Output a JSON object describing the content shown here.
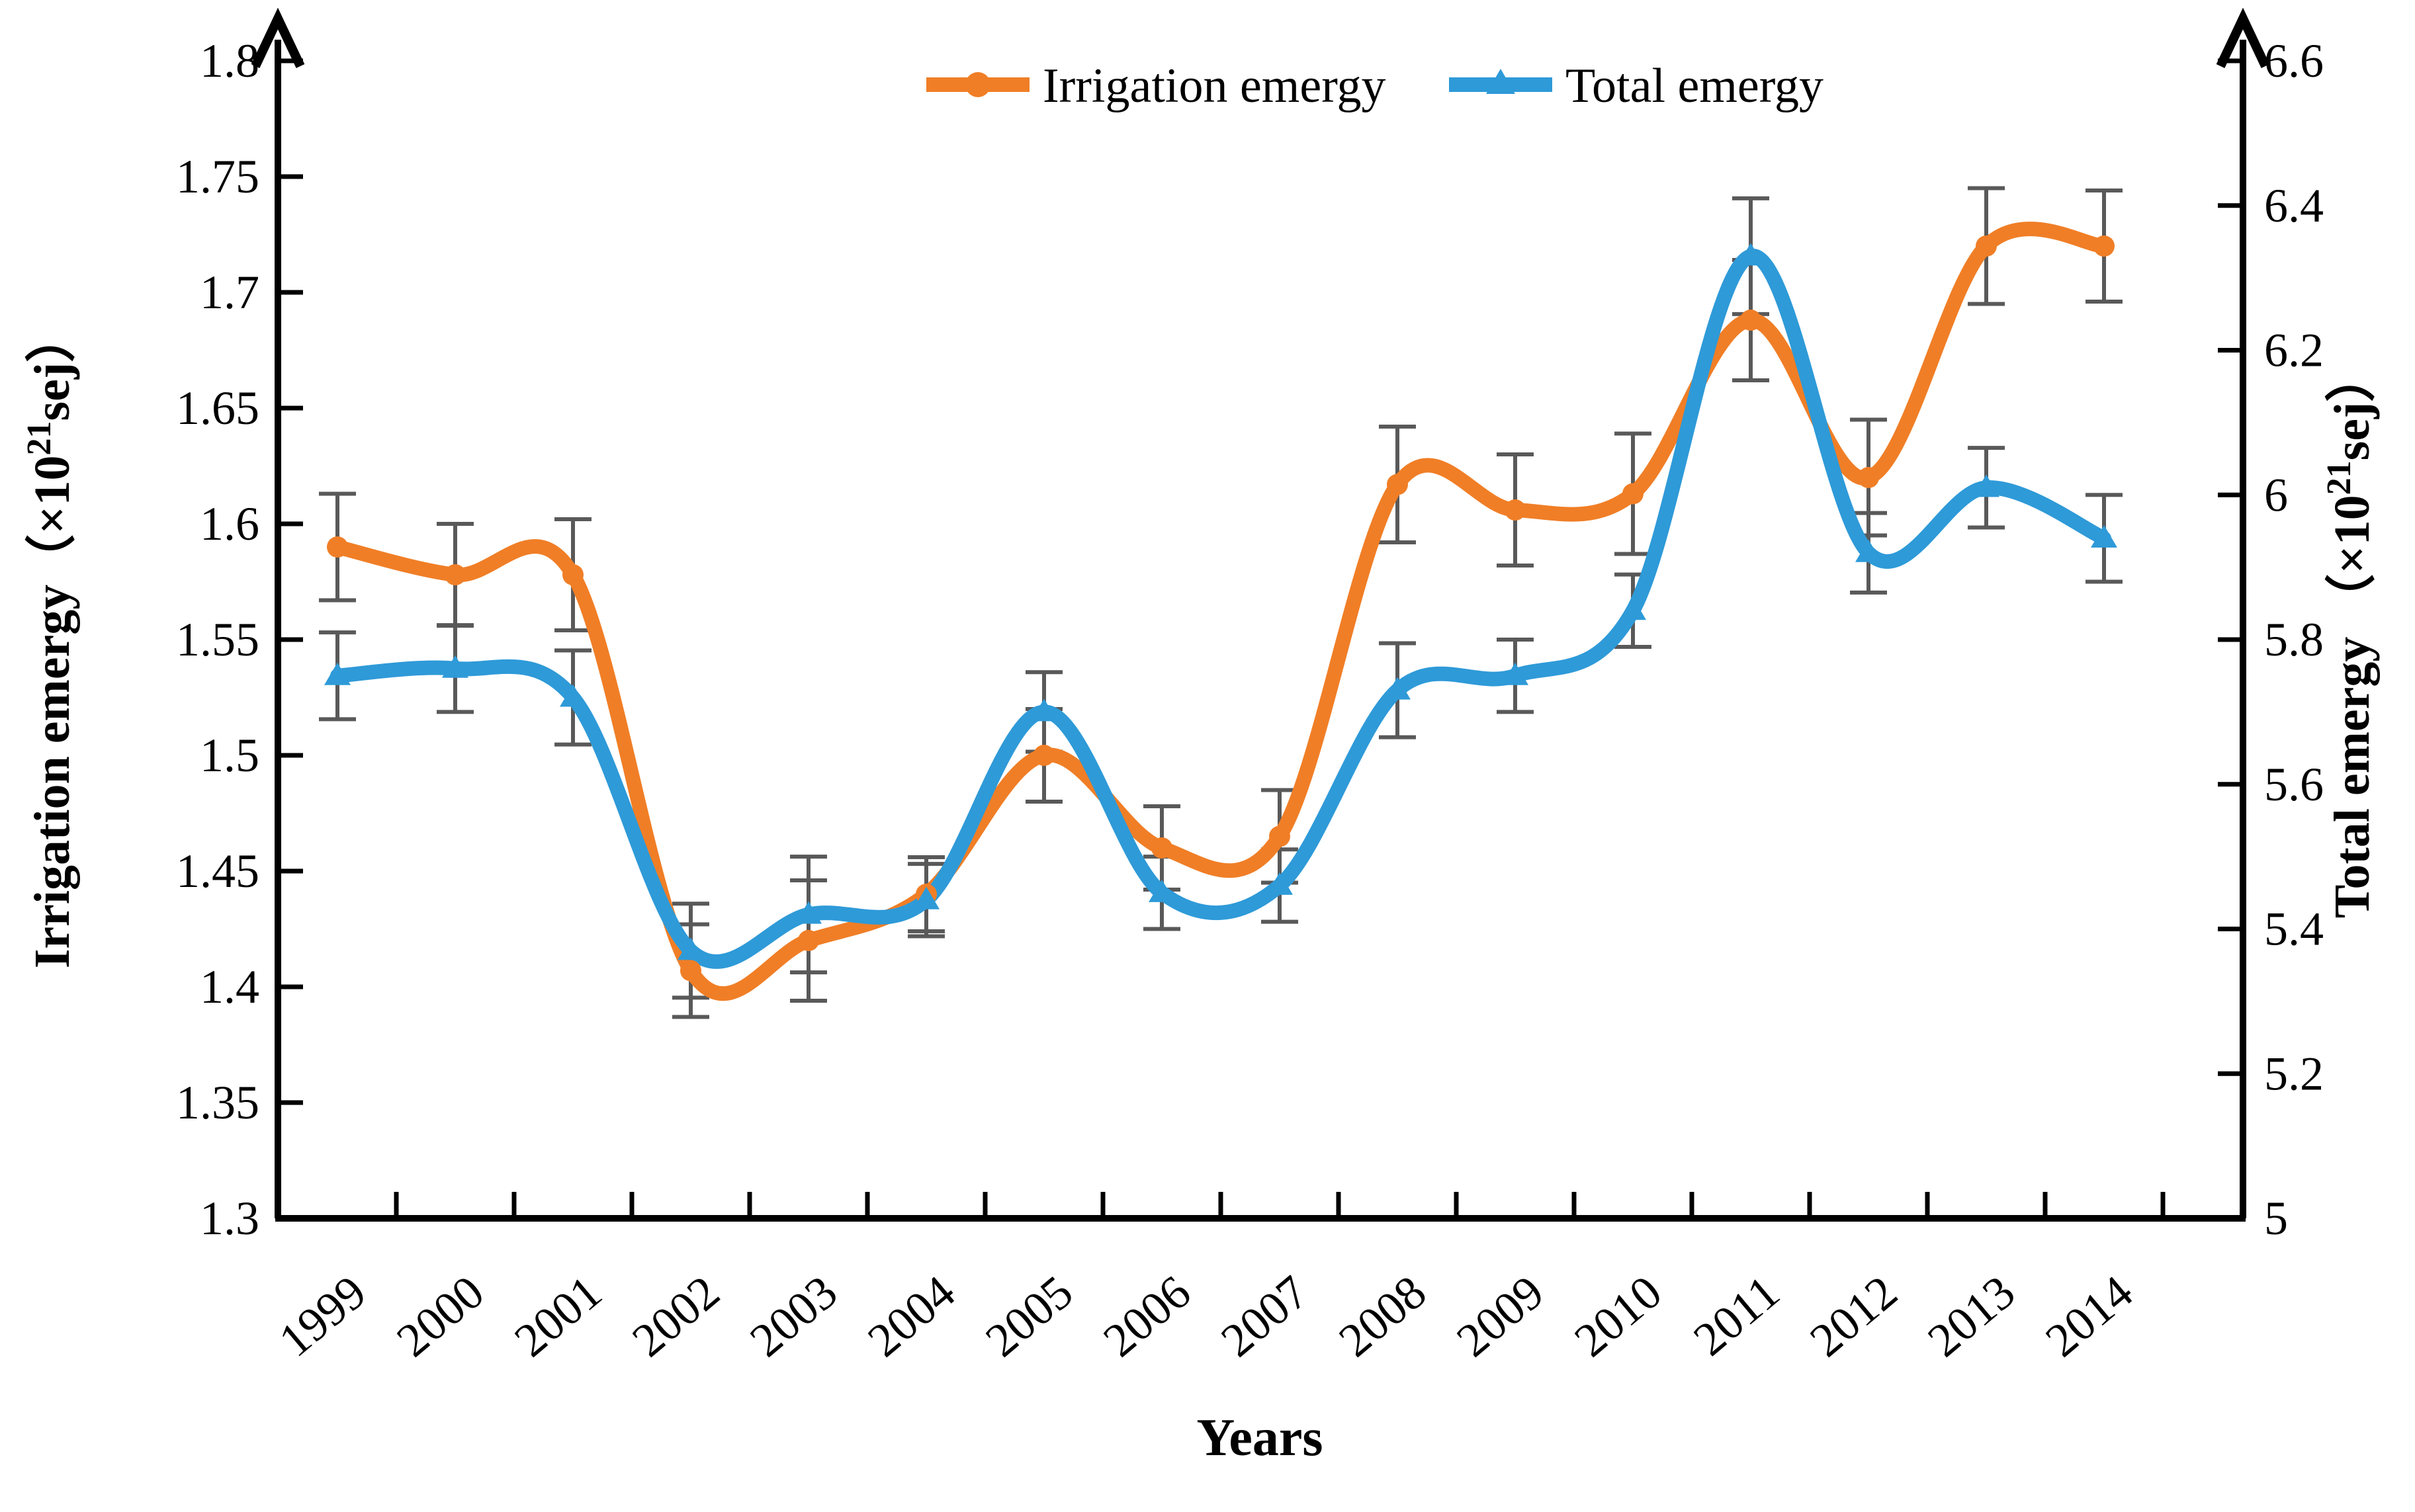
{
  "figure": {
    "background": "#ffffff",
    "xlabel": "Years"
  },
  "chart_data": {
    "type": "line",
    "title": "",
    "xlabel": "Years",
    "grid": false,
    "legend_position": "top-center",
    "categories": [
      "1999",
      "2000",
      "2001",
      "2002",
      "2003",
      "2004",
      "2005",
      "2006",
      "2007",
      "2008",
      "2009",
      "2010",
      "2011",
      "2012",
      "2013",
      "2014"
    ],
    "left_axis": {
      "label_prefix": "Irrigation emergy（×10",
      "label_sup": "21",
      "label_suffix": "sej）",
      "min": 1.3,
      "max": 1.8,
      "ticks": [
        "1.8",
        "1.75",
        "1.7",
        "1.65",
        "1.6",
        "1.55",
        "1.5",
        "1.45",
        "1.4",
        "1.35",
        "1.3"
      ]
    },
    "right_axis": {
      "label_prefix": "Total emergy （×10",
      "label_sup": "21",
      "label_suffix": "sej）",
      "min": 5.0,
      "max": 6.6,
      "ticks": [
        "6.6",
        "6.4",
        "6.2",
        "6",
        "5.8",
        "5.6",
        "5.4",
        "5.2",
        "5"
      ]
    },
    "series": [
      {
        "name": "Irrigation emergy",
        "axis": "left",
        "color": "#F07E26",
        "marker": "circle",
        "values": [
          1.59,
          1.578,
          1.578,
          1.407,
          1.42,
          1.44,
          1.5,
          1.46,
          1.465,
          1.617,
          1.606,
          1.613,
          1.688,
          1.62,
          1.72,
          1.72
        ],
        "errors": [
          0.023,
          0.022,
          0.024,
          0.02,
          0.026,
          0.016,
          0.02,
          0.018,
          0.02,
          0.025,
          0.024,
          0.026,
          0.026,
          0.025,
          0.025,
          0.024
        ]
      },
      {
        "name": "Total emergy",
        "axis": "right",
        "color": "#2E9AD8",
        "marker": "triangle",
        "values": [
          5.75,
          5.76,
          5.72,
          5.37,
          5.42,
          5.44,
          5.7,
          5.45,
          5.46,
          5.73,
          5.75,
          5.84,
          6.33,
          5.92,
          6.01,
          5.94
        ],
        "errors": [
          0.06,
          0.06,
          0.065,
          0.065,
          0.08,
          0.05,
          0.055,
          0.05,
          0.05,
          0.065,
          0.05,
          0.05,
          0.08,
          0.055,
          0.055,
          0.06
        ]
      }
    ],
    "error_bar_color": "#595959",
    "axis_color": "#000000"
  }
}
